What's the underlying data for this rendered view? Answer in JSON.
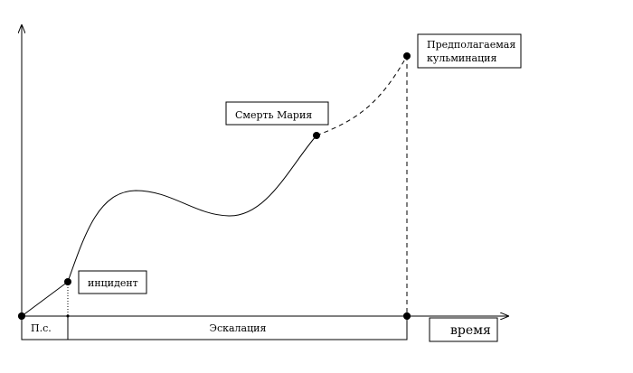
{
  "labels": {
    "incident": "инцидент",
    "death": "Смерть Мария",
    "climax_line1": "Предполагаемая",
    "climax_line2": "кульминация",
    "time": "время",
    "ps": "П.с.",
    "escalation": "Эскалация"
  }
}
